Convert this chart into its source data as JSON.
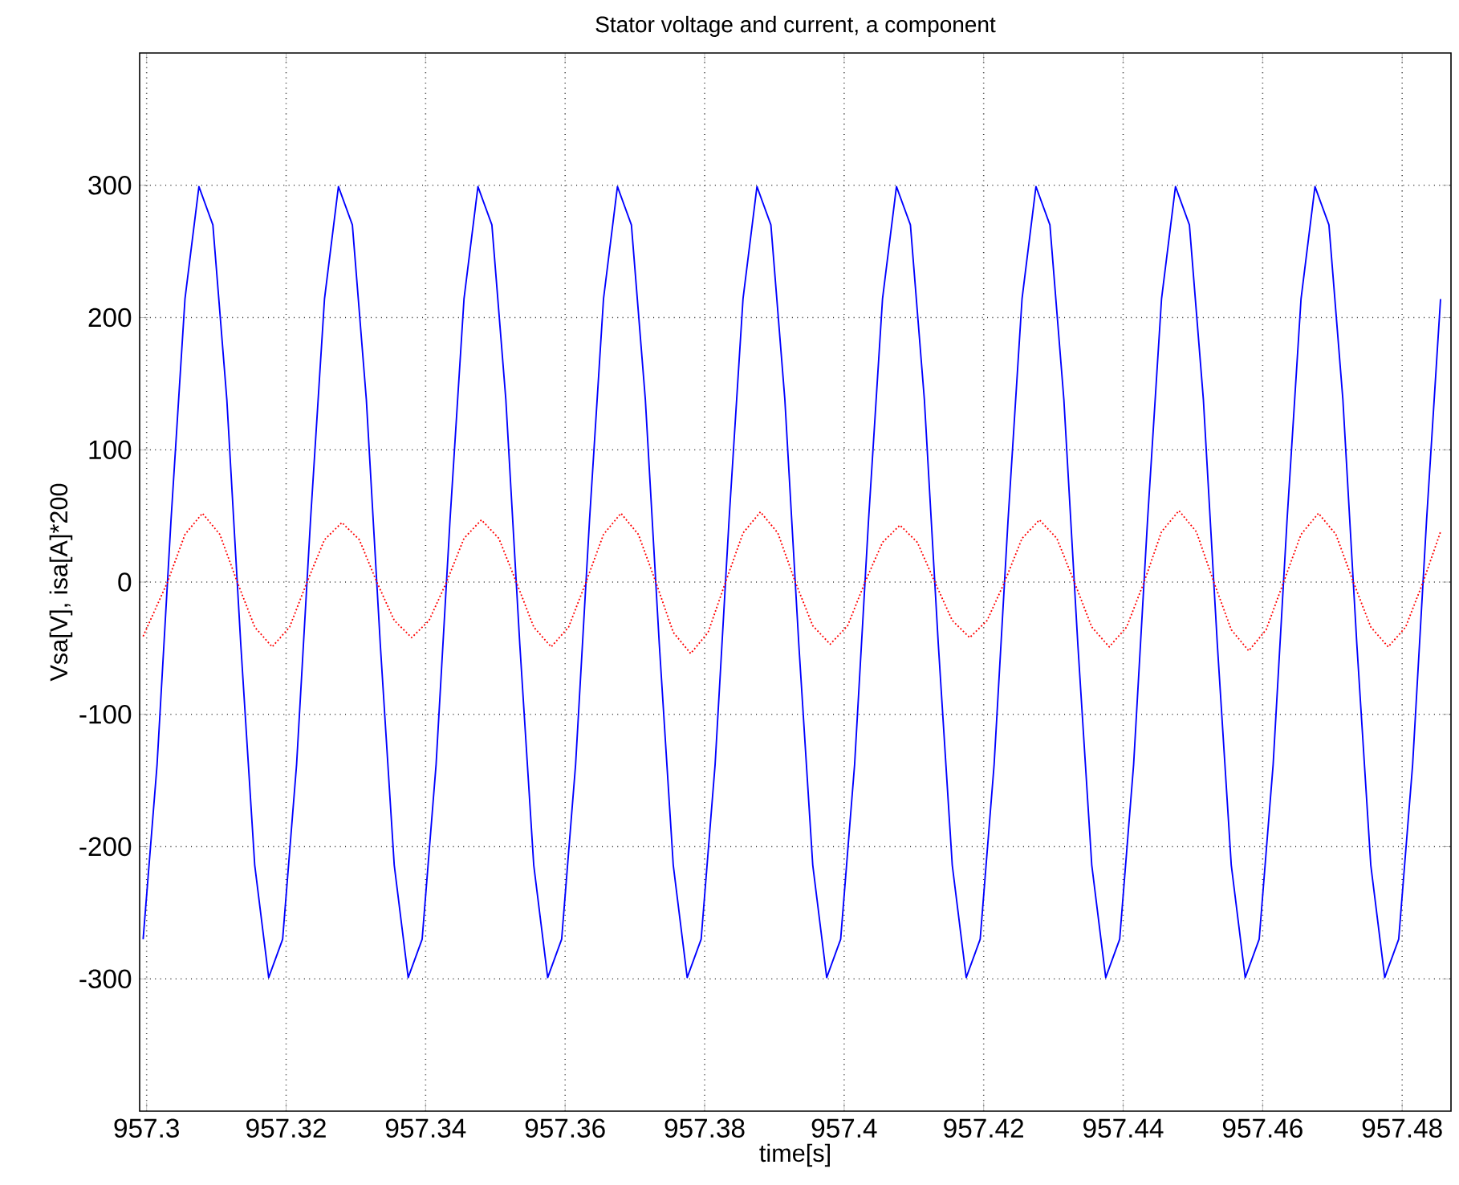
{
  "chart_data": {
    "type": "line",
    "title": "Stator voltage and current, a component",
    "xlabel": "time[s]",
    "ylabel": "Vsa[V], isa[A]*200",
    "xlim": [
      957.299,
      957.487
    ],
    "xticks": [
      957.3,
      957.32,
      957.34,
      957.36,
      957.38,
      957.4,
      957.42,
      957.44,
      957.46,
      957.48
    ],
    "ylim": [
      -400,
      400
    ],
    "yticks": [
      -300,
      -200,
      -100,
      0,
      100,
      200,
      300
    ],
    "grid": true,
    "marker": "none",
    "series": [
      {
        "color": "#0000ff",
        "line_style": "solid",
        "x": [
          957.2995,
          957.3015,
          957.3035,
          957.3055,
          957.3075,
          957.3095,
          957.3115,
          957.3135,
          957.3155,
          957.3175,
          957.3195,
          957.3215,
          957.3235,
          957.3255,
          957.3275,
          957.3295,
          957.3315,
          957.3335,
          957.3355,
          957.3375,
          957.3395,
          957.3415,
          957.3435,
          957.3455,
          957.3475,
          957.3495,
          957.3515,
          957.3535,
          957.3555,
          957.3575,
          957.3595,
          957.3615,
          957.3635,
          957.3655,
          957.3675,
          957.3695,
          957.3715,
          957.3735,
          957.3755,
          957.3775,
          957.3795,
          957.3815,
          957.3835,
          957.3855,
          957.3875,
          957.3895,
          957.3915,
          957.3935,
          957.3955,
          957.3975,
          957.3995,
          957.4015,
          957.4035,
          957.4055,
          957.4075,
          957.4095,
          957.4115,
          957.4135,
          957.4155,
          957.4175,
          957.4195,
          957.4215,
          957.4235,
          957.4255,
          957.4275,
          957.4295,
          957.4315,
          957.4335,
          957.4355,
          957.4375,
          957.4395,
          957.4415,
          957.4435,
          957.4455,
          957.4475,
          957.4495,
          957.4515,
          957.4535,
          957.4555,
          957.4575,
          957.4595,
          957.4615,
          957.4635,
          957.4655,
          957.4675,
          957.4695,
          957.4715,
          957.4735,
          957.4755,
          957.4775,
          957.4795,
          957.4815,
          957.4835,
          957.4855
        ],
        "values": [
          -270,
          -138,
          47,
          214,
          299,
          270,
          138,
          -47,
          -214,
          -299,
          -270,
          -138,
          47,
          214,
          299,
          270,
          138,
          -47,
          -214,
          -299,
          -270,
          -138,
          47,
          214,
          299,
          270,
          138,
          -47,
          -214,
          -299,
          -270,
          -138,
          47,
          214,
          299,
          270,
          138,
          -47,
          -214,
          -299,
          -270,
          -138,
          47,
          214,
          299,
          270,
          138,
          -47,
          -214,
          -299,
          -270,
          -138,
          47,
          214,
          299,
          270,
          138,
          -47,
          -214,
          -299,
          -270,
          -138,
          47,
          214,
          299,
          270,
          138,
          -47,
          -214,
          -299,
          -270,
          -138,
          47,
          214,
          299,
          270,
          138,
          -47,
          -214,
          -299,
          -270,
          -138,
          47,
          214,
          299,
          270,
          138,
          -47,
          -214,
          -299,
          -270,
          -138,
          47,
          214
        ]
      },
      {
        "color": "#ff0000",
        "line_style": "dotted",
        "x": [
          957.2995,
          957.303,
          957.3055,
          957.308,
          957.3105,
          957.313,
          957.3155,
          957.318,
          957.3205,
          957.323,
          957.3255,
          957.328,
          957.3305,
          957.333,
          957.3355,
          957.338,
          957.3405,
          957.343,
          957.3455,
          957.348,
          957.3505,
          957.353,
          957.3555,
          957.358,
          957.3605,
          957.363,
          957.3655,
          957.368,
          957.3705,
          957.373,
          957.3755,
          957.378,
          957.3805,
          957.383,
          957.3855,
          957.388,
          957.3905,
          957.393,
          957.3955,
          957.398,
          957.4005,
          957.403,
          957.4055,
          957.408,
          957.4105,
          957.413,
          957.4155,
          957.418,
          957.4205,
          957.423,
          957.4255,
          957.428,
          957.4305,
          957.433,
          957.4355,
          957.438,
          957.4405,
          957.443,
          957.4455,
          957.448,
          957.4505,
          957.453,
          957.4555,
          957.458,
          957.4605,
          957.463,
          957.4655,
          957.468,
          957.4705,
          957.473,
          957.4755,
          957.478,
          957.4805,
          957.483,
          957.4855
        ],
        "values": [
          -41,
          0,
          36,
          52,
          36,
          0,
          -34,
          -49,
          -34,
          0,
          32,
          45,
          32,
          0,
          -29,
          -42,
          -29,
          0,
          33,
          47,
          33,
          0,
          -34,
          -49,
          -34,
          0,
          36,
          52,
          36,
          0,
          -38,
          -54,
          -38,
          0,
          37,
          53,
          37,
          0,
          -33,
          -47,
          -33,
          0,
          30,
          43,
          30,
          0,
          -29,
          -42,
          -29,
          0,
          33,
          47,
          33,
          0,
          -34,
          -49,
          -34,
          0,
          38,
          54,
          38,
          0,
          -36,
          -52,
          -36,
          0,
          36,
          52,
          36,
          0,
          -34,
          -49,
          -34,
          0,
          38
        ]
      }
    ]
  }
}
